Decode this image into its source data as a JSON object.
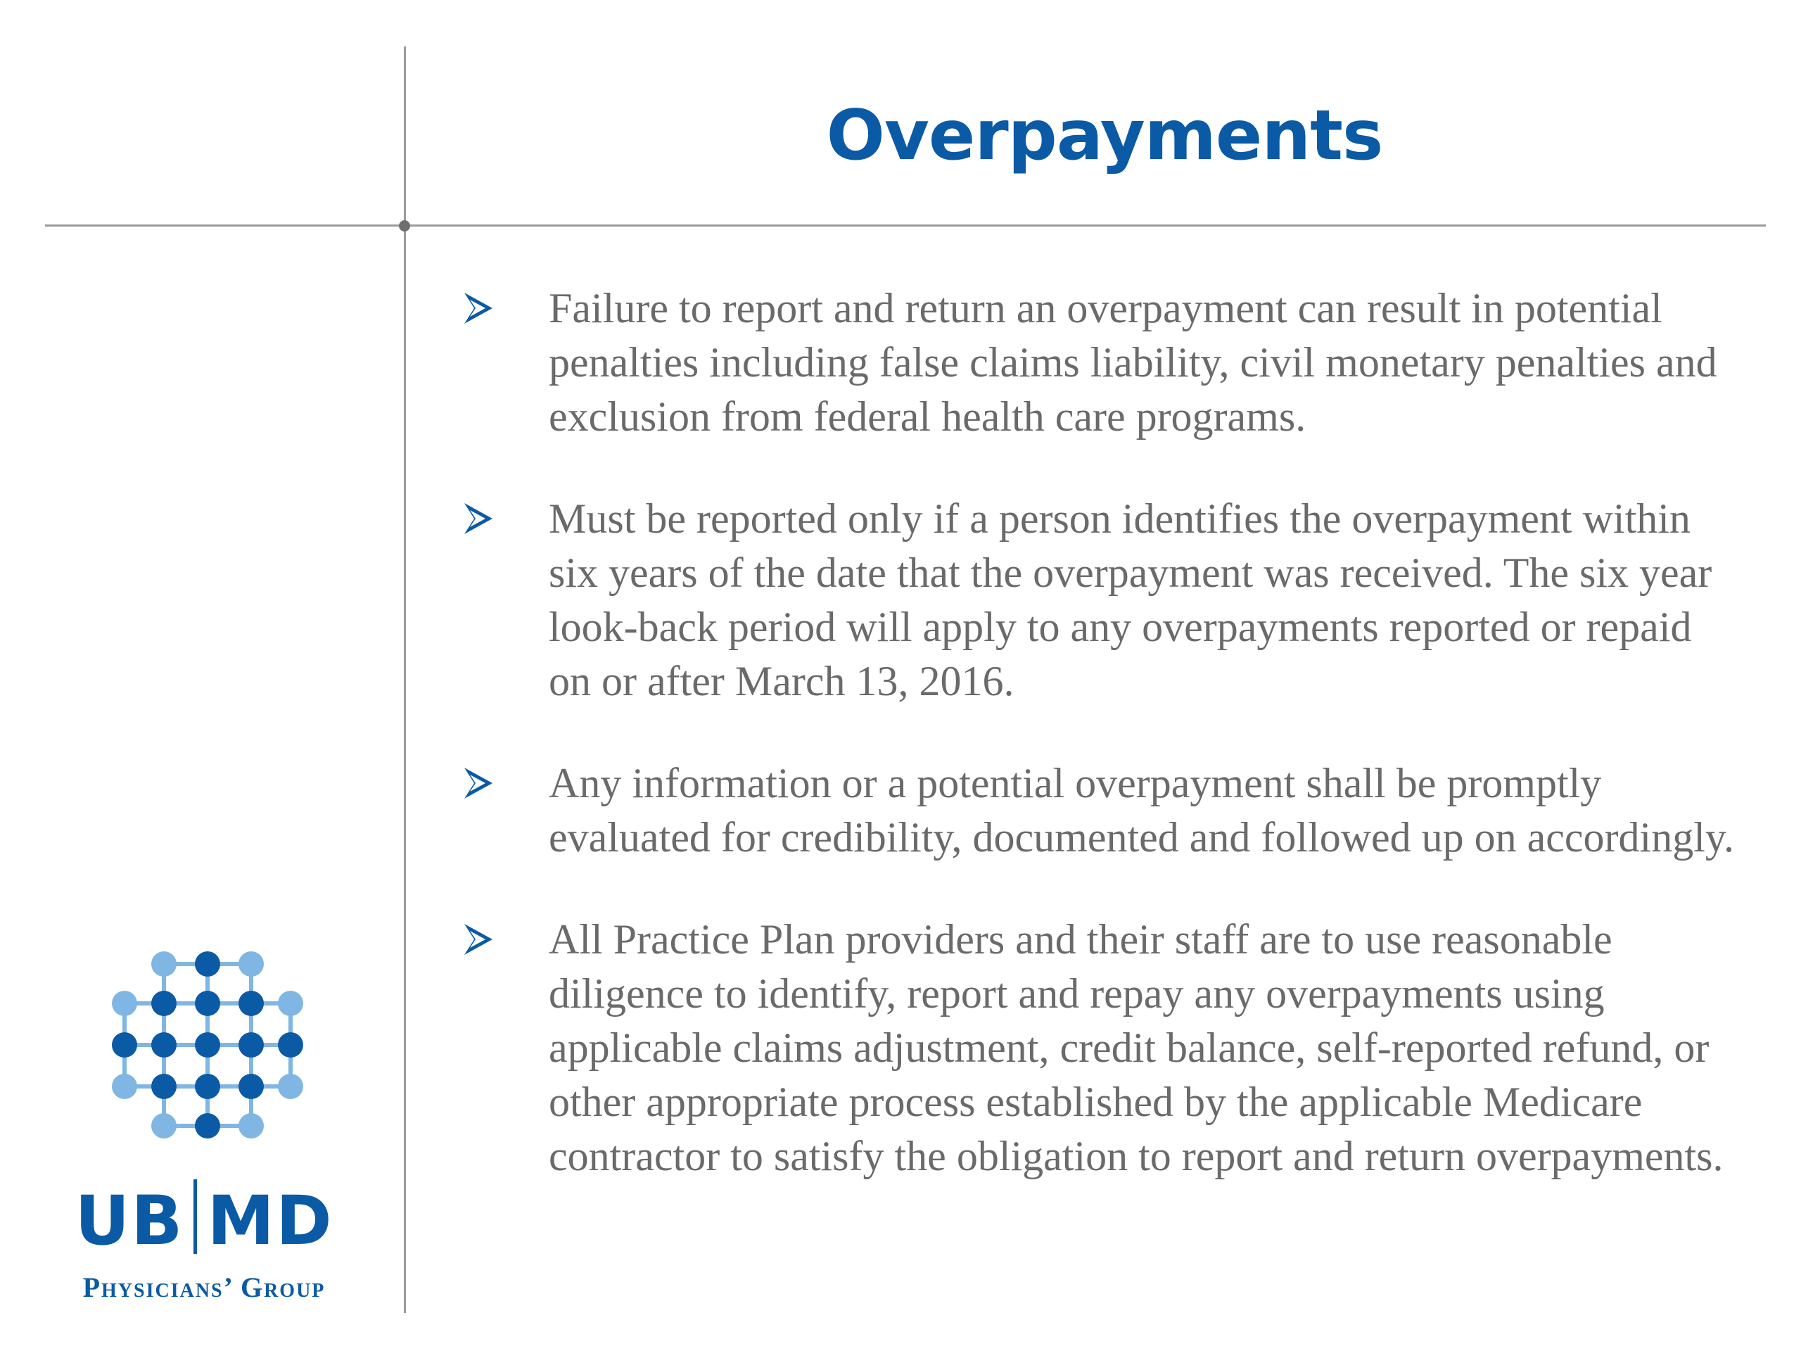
{
  "slide": {
    "title": "Overpayments",
    "bullets": [
      "Failure to report and return an overpayment can result in potential penalties including false claims liability, civil monetary penalties and exclusion from federal health care programs.",
      "Must be reported only if a person identifies the overpayment within six years of the date that the overpayment was received. The six year look-back period will apply to any overpayments reported or repaid on or after March 13, 2016.",
      "Any information or a potential overpayment shall be promptly evaluated for credibility, documented and followed up on accordingly.",
      "All Practice Plan providers and their staff are to use reasonable diligence to identify, report and repay any overpayments using applicable claims adjustment, credit balance, self-reported refund, or other appropriate process established by the applicable Medicare contractor to satisfy the obligation to report and return overpayments."
    ],
    "bullet_icon": "arrowhead-bullet-icon"
  },
  "logo": {
    "wordmark_left": "UB",
    "wordmark_right": "MD",
    "tagline": "Physicians’ Group",
    "icon": "molecule-grid-icon"
  },
  "colors": {
    "brand_blue": "#0b5aa5",
    "light_blue": "#7fb6e3",
    "body_text": "#6a6a6a",
    "rule": "#9a9a9a"
  }
}
